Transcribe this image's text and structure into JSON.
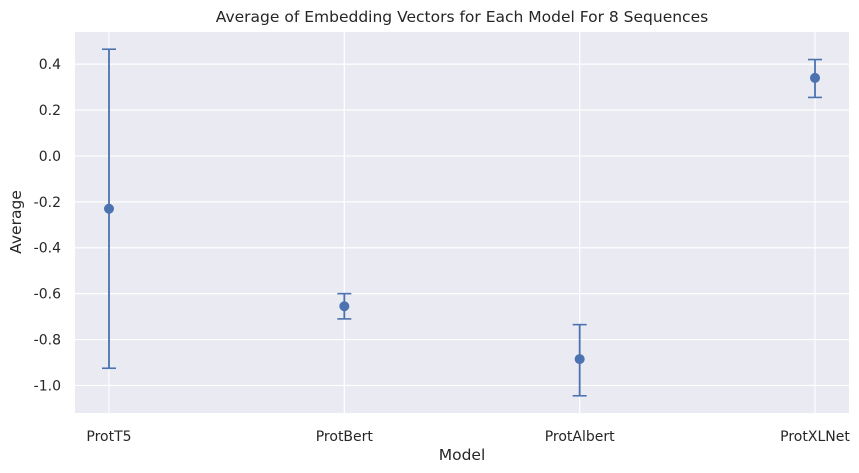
{
  "chart_data": {
    "type": "scatter",
    "title": "Average of Embedding Vectors for Each Model For 8 Sequences",
    "xlabel": "Model",
    "ylabel": "Average",
    "categories": [
      "ProtT5",
      "ProtBert",
      "ProtAlbert",
      "ProtXLNet"
    ],
    "series": [
      {
        "values": [
          -0.23,
          -0.655,
          -0.885,
          0.34
        ],
        "error_low": [
          -0.925,
          -0.71,
          -1.045,
          0.255
        ],
        "error_high": [
          0.465,
          -0.6,
          -0.735,
          0.42
        ]
      }
    ],
    "yticks": [
      "0.4",
      "0.2",
      "0.0",
      "-0.2",
      "-0.4",
      "-0.6",
      "-0.8",
      "-1.0"
    ],
    "ytick_values": [
      0.4,
      0.2,
      0.0,
      -0.2,
      -0.4,
      -0.6,
      -0.8,
      -1.0
    ],
    "ylim": [
      -1.12,
      0.54
    ],
    "grid": true,
    "colors": {
      "background": "#eaeaf2",
      "grid": "#ffffff",
      "marker": "#4c72b0",
      "errorbar": "#4c72b0"
    }
  }
}
